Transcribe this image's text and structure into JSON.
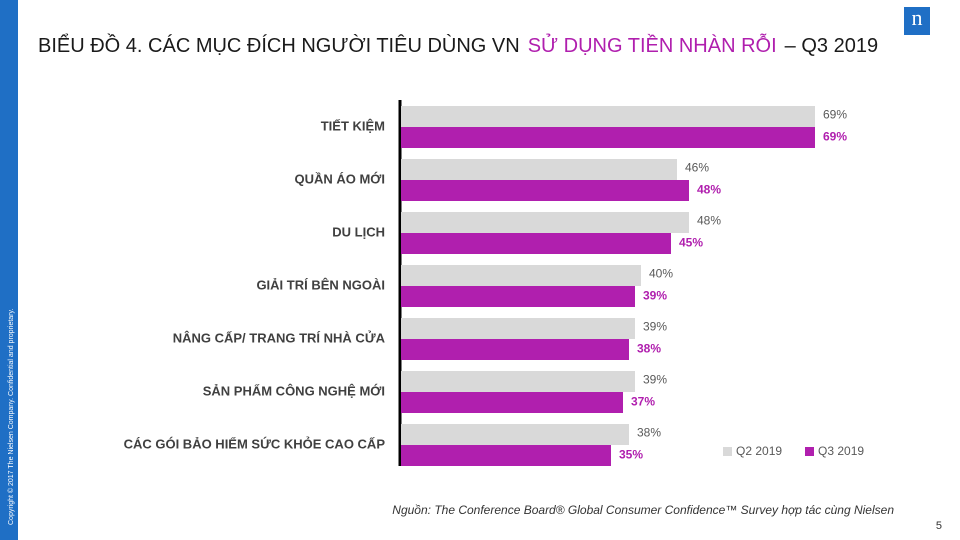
{
  "chart_data": {
    "type": "bar",
    "orientation": "horizontal",
    "title": [
      "BIỂU ĐỒ 4. CÁC MỤC ĐÍCH NGƯỜI TIÊU DÙNG VN",
      "SỬ DỤNG TIỀN NHÀN RỖI",
      "– Q3 2019"
    ],
    "categories": [
      "TIẾT KIỆM",
      "QUẦN ÁO MỚI",
      "DU LỊCH",
      "GIẢI TRÍ BÊN NGOÀI",
      "NÂNG CẤP/ TRANG TRÍ NHÀ CỬA",
      "SẢN PHẨM CÔNG NGHỆ MỚI",
      "CÁC GÓI BẢO HIỂM SỨC KHỎE CAO CẤP"
    ],
    "series": [
      {
        "name": "Q2 2019",
        "color": "#d9d9d9",
        "values": [
          69,
          46,
          48,
          40,
          39,
          39,
          38
        ],
        "value_labels": [
          "69%",
          "46%",
          "48%",
          "40%",
          "39%",
          "39%",
          "38%"
        ]
      },
      {
        "name": "Q3 2019",
        "color": "#b01fae",
        "values": [
          69,
          48,
          45,
          39,
          38,
          37,
          35
        ],
        "value_labels": [
          "69%",
          "48%",
          "45%",
          "39%",
          "38%",
          "37%",
          "35%"
        ]
      }
    ],
    "legend": "bottom-right",
    "source": "Nguồn: The Conference Board® Global Consumer Confidence™ Survey hợp  tác cùng  Nielsen",
    "page_number": "5",
    "copyright": "Copyright © 2017 The Nielsen Company. Confidential and proprietary.",
    "logo": "n"
  }
}
